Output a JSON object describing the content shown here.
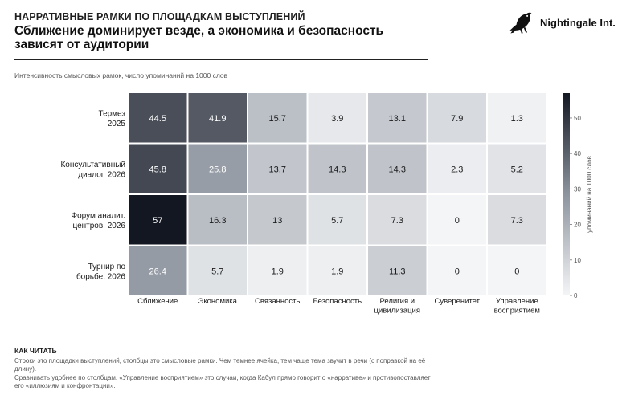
{
  "header": {
    "kicker": "НАРРАТИВНЫЕ РАМКИ ПО ПЛОЩАДКАМ ВЫСТУПЛЕНИЙ",
    "title": "Сближение доминирует везде, а экономика и безопасность зависят от аудитории",
    "subtitle": "Интенсивность смысловых рамок, число упоминаний на 1000 слов"
  },
  "brand": {
    "name": "Nightingale Int.",
    "icon": "nightingale-bird-icon"
  },
  "chart_data": {
    "type": "heatmap",
    "rows": [
      [
        "Термез",
        "2025"
      ],
      [
        "Консультативный",
        "диалог, 2026"
      ],
      [
        "Форум аналит.",
        "центров, 2026"
      ],
      [
        "Турнир по",
        "борьбе, 2026"
      ]
    ],
    "columns": [
      [
        "Сближение"
      ],
      [
        "Экономика"
      ],
      [
        "Связанность"
      ],
      [
        "Безопасность"
      ],
      [
        "Религия и",
        "цивилизация"
      ],
      [
        "Суверенитет"
      ],
      [
        "Управление",
        "восприятием"
      ]
    ],
    "cell_labels": [
      [
        "44.5",
        "41.9",
        "15.7",
        "3.9",
        "13.1",
        "7.9",
        "1.3"
      ],
      [
        "45.8",
        "25.8",
        "13.7",
        "14.3",
        "14.3",
        "2.3",
        "5.2"
      ],
      [
        "57",
        "16.3",
        "13",
        "5.7",
        "7.3",
        "0",
        "7.3"
      ],
      [
        "26.4",
        "5.7",
        "1.9",
        "1.9",
        "11.3",
        "0",
        "0"
      ]
    ],
    "values": [
      [
        44.5,
        41.9,
        15.7,
        3.9,
        13.1,
        7.9,
        1.3
      ],
      [
        45.8,
        25.8,
        13.7,
        14.3,
        14.3,
        2.3,
        5.2
      ],
      [
        57,
        16.3,
        13,
        5.7,
        7.3,
        0,
        7.3
      ],
      [
        26.4,
        5.7,
        1.9,
        1.9,
        11.3,
        0,
        0
      ]
    ],
    "colorbar": {
      "label": "упоминаний на 1000 слов",
      "ticks": [
        "0",
        "10",
        "20",
        "30",
        "40",
        "50"
      ],
      "tick_values": [
        0,
        10,
        20,
        30,
        40,
        50
      ],
      "range": [
        0,
        57
      ]
    },
    "colors": {
      "low": "#f4f5f7",
      "mid": "#8d949e",
      "high": "#131722",
      "light_text": "#ffffff",
      "dark_text": "#1a1a1a"
    }
  },
  "reading_guide": {
    "heading": "КАК ЧИТАТЬ",
    "line1": "Строки это площадки выступлений, столбцы это смысловые рамки. Чем темнее ячейка, тем чаще тема звучит в речи (с поправкой на её длину).",
    "line2": "Сравнивать удобнее по столбцам. «Управление восприятием» это случаи, когда Кабул прямо говорит о «нарративе» и противопоставляет его «иллюзиям и конфронтации»."
  }
}
